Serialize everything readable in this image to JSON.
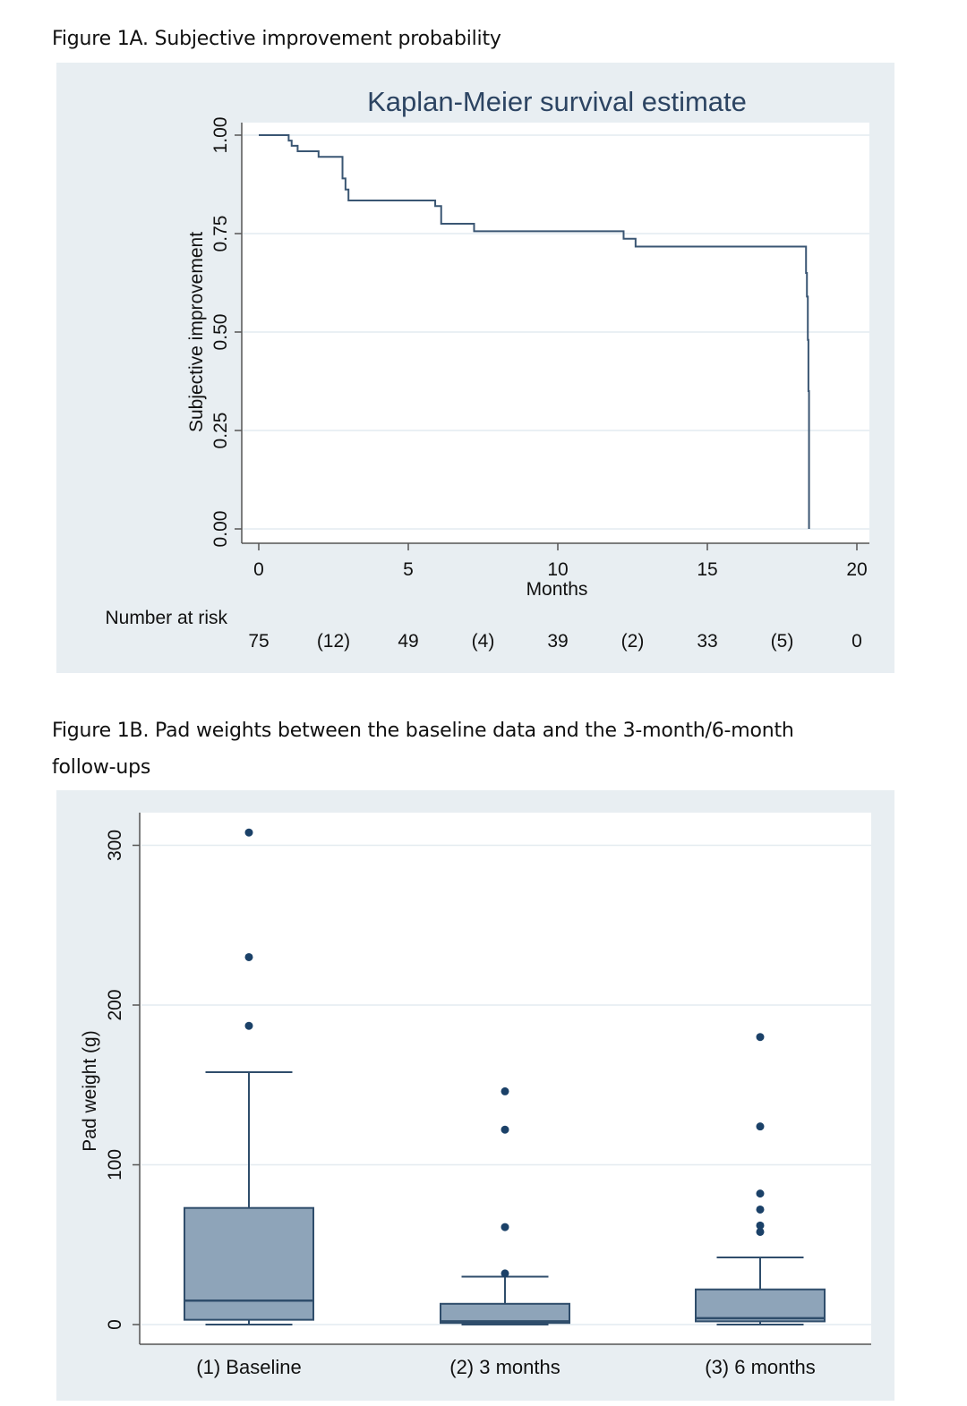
{
  "figure_a": {
    "caption": "Figure 1A. Subjective improvement probability",
    "risk_label": "Number at risk"
  },
  "figure_b": {
    "caption_line1": "Figure 1B. Pad weights between the baseline data and the 3-month/6-month",
    "caption_line2": "follow-ups"
  },
  "chart_data": [
    {
      "type": "line",
      "subtype": "kaplan-meier-step",
      "title": "Kaplan-Meier survival estimate",
      "xlabel": "Months",
      "ylabel": "Subjective improvement",
      "xlim": [
        0,
        20
      ],
      "ylim": [
        0,
        1
      ],
      "xticks": [
        0,
        5,
        10,
        15,
        20
      ],
      "yticks": [
        "0.00",
        "0.25",
        "0.50",
        "0.75",
        "1.00"
      ],
      "grid": true,
      "color": "#3a5673",
      "x": [
        0,
        1.0,
        1.1,
        1.3,
        2.0,
        2.8,
        2.9,
        3.0,
        3.1,
        5.9,
        6.1,
        7.2,
        12.2,
        12.6,
        18.3,
        18.33,
        18.36,
        18.38,
        18.4
      ],
      "y": [
        1.0,
        0.986,
        0.973,
        0.959,
        0.945,
        0.89,
        0.862,
        0.834,
        0.834,
        0.82,
        0.775,
        0.756,
        0.737,
        0.717,
        0.65,
        0.59,
        0.48,
        0.35,
        0.0
      ],
      "risk_table": [
        "75",
        "(12)",
        "49",
        "(4)",
        "39",
        "(2)",
        "33",
        "(5)",
        "0"
      ]
    },
    {
      "type": "box",
      "xlabel": "",
      "ylabel": "Pad weight (g)",
      "ylim": [
        -10,
        320
      ],
      "yticks": [
        0,
        100,
        200,
        300
      ],
      "grid": true,
      "categories": [
        "(1) Baseline",
        "(2) 3 months",
        "(3) 6 months"
      ],
      "box_color": "#8ea4b9",
      "line_color": "#2f4d6b",
      "point_color": "#1b4168",
      "boxes": [
        {
          "whisker_low": 0,
          "q1": 3,
          "median": 15,
          "q3": 73,
          "whisker_high": 158,
          "outliers": [
            187,
            230,
            308
          ]
        },
        {
          "whisker_low": 0,
          "q1": 1,
          "median": 2,
          "q3": 13,
          "whisker_high": 30,
          "outliers": [
            32,
            61,
            122,
            146
          ]
        },
        {
          "whisker_low": 0,
          "q1": 2,
          "median": 4,
          "q3": 22,
          "whisker_high": 42,
          "outliers": [
            58,
            62,
            72,
            82,
            124,
            180
          ]
        }
      ]
    }
  ]
}
